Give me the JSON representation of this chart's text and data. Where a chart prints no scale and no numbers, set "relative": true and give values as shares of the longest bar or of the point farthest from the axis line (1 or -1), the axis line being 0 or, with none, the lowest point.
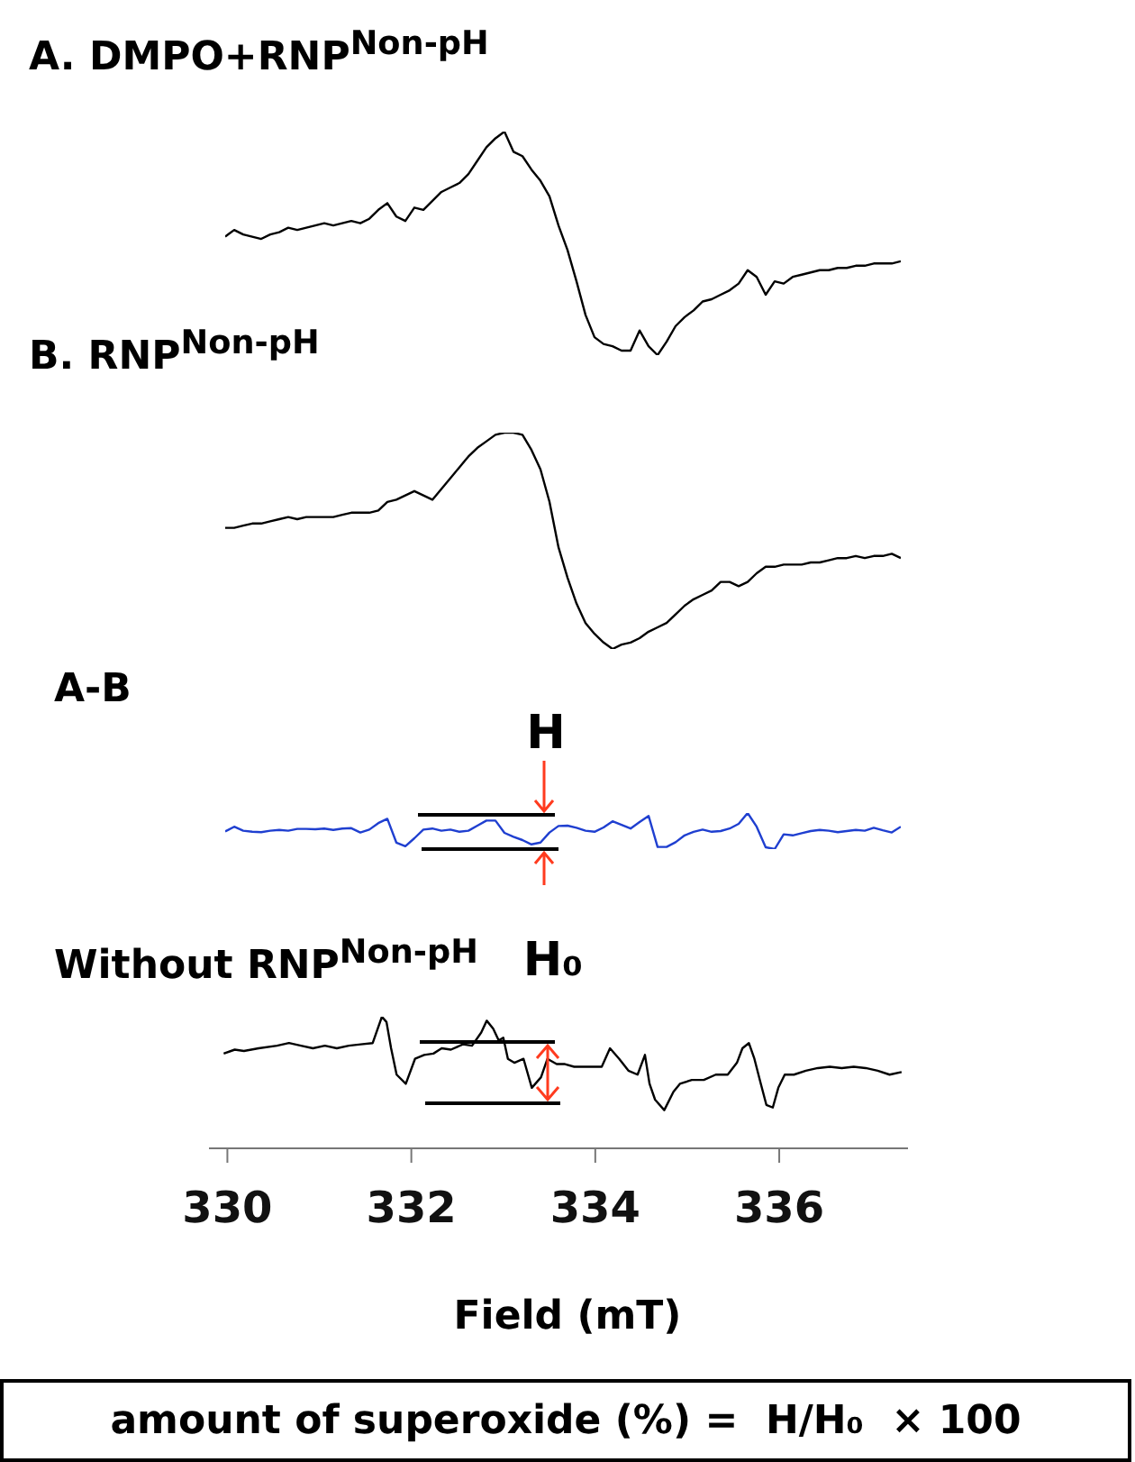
{
  "chart_data": [
    {
      "type": "line",
      "title": "A. DMPO+RNP$^{Non-pH}$",
      "relative": true,
      "marker": "none",
      "line_style": "solid",
      "tick_labels": false,
      "categories": [
        null,
        null,
        null,
        null,
        null,
        null,
        null,
        null,
        null,
        null,
        null,
        null,
        null,
        null,
        null,
        null,
        null,
        null,
        null,
        null,
        null,
        null,
        null,
        null,
        null,
        null,
        null,
        null,
        null,
        null,
        null,
        null,
        null,
        null,
        null,
        null,
        null,
        null,
        null,
        null,
        null,
        null,
        null,
        null,
        null,
        null,
        null,
        null,
        null,
        null,
        null,
        null,
        null,
        null,
        null,
        null,
        null,
        null,
        null,
        null,
        null,
        null,
        null,
        null,
        null,
        null,
        null,
        null,
        null,
        null,
        null,
        null,
        null,
        null,
        null,
        null
      ],
      "series": [
        {
          "color": "#000000",
          "values": [
            0.53,
            0.56,
            0.54,
            0.53,
            0.52,
            0.54,
            0.55,
            0.57,
            0.56,
            0.57,
            0.58,
            0.59,
            0.58,
            0.59,
            0.6,
            0.59,
            0.61,
            0.65,
            0.68,
            0.62,
            0.6,
            0.66,
            0.65,
            0.69,
            0.73,
            0.75,
            0.77,
            0.81,
            0.87,
            0.93,
            0.97,
            1,
            0.91,
            0.89,
            0.83,
            0.78,
            0.71,
            0.58,
            0.47,
            0.33,
            0.18,
            0.08,
            0.05,
            0.04,
            0.02,
            0.02,
            0.11,
            0.04,
            0,
            0.06,
            0.13,
            0.17,
            0.2,
            0.24,
            0.25,
            0.27,
            0.29,
            0.32,
            0.38,
            0.35,
            0.27,
            0.33,
            0.32,
            0.35,
            0.36,
            0.37,
            0.38,
            0.38,
            0.39,
            0.39,
            0.4,
            0.4,
            0.41,
            0.41,
            0.41,
            0.42
          ]
        }
      ]
    },
    {
      "type": "line",
      "title": "B. RNP$^{Non-pH}$",
      "relative": true,
      "marker": "none",
      "line_style": "solid",
      "tick_labels": false,
      "categories": [
        null,
        null,
        null,
        null,
        null,
        null,
        null,
        null,
        null,
        null,
        null,
        null,
        null,
        null,
        null,
        null,
        null,
        null,
        null,
        null,
        null,
        null,
        null,
        null,
        null,
        null,
        null,
        null,
        null,
        null,
        null,
        null,
        null,
        null,
        null,
        null,
        null,
        null,
        null,
        null,
        null,
        null,
        null,
        null,
        null,
        null,
        null,
        null,
        null,
        null,
        null,
        null,
        null,
        null,
        null,
        null,
        null,
        null,
        null,
        null,
        null,
        null,
        null,
        null,
        null,
        null,
        null,
        null,
        null,
        null,
        null,
        null,
        null,
        null,
        null,
        null
      ],
      "series": [
        {
          "color": "#000000",
          "values": [
            0.56,
            0.56,
            0.57,
            0.58,
            0.58,
            0.59,
            0.6,
            0.61,
            0.6,
            0.61,
            0.61,
            0.61,
            0.61,
            0.62,
            0.63,
            0.63,
            0.63,
            0.64,
            0.68,
            0.69,
            0.71,
            0.73,
            0.71,
            0.69,
            0.74,
            0.79,
            0.84,
            0.89,
            0.93,
            0.96,
            0.99,
            1,
            1,
            0.99,
            0.92,
            0.83,
            0.68,
            0.47,
            0.33,
            0.21,
            0.12,
            0.07,
            0.03,
            0,
            0.02,
            0.03,
            0.05,
            0.08,
            0.1,
            0.12,
            0.16,
            0.2,
            0.23,
            0.25,
            0.27,
            0.31,
            0.31,
            0.29,
            0.31,
            0.35,
            0.38,
            0.38,
            0.39,
            0.39,
            0.39,
            0.4,
            0.4,
            0.41,
            0.42,
            0.42,
            0.43,
            0.42,
            0.43,
            0.43,
            0.44,
            0.42
          ]
        }
      ]
    },
    {
      "type": "line",
      "title": "A-B",
      "relative": true,
      "marker": "none",
      "line_style": "solid",
      "tick_labels": false,
      "annotations": [
        "H"
      ],
      "categories": [
        null,
        null,
        null,
        null,
        null,
        null,
        null,
        null,
        null,
        null,
        null,
        null,
        null,
        null,
        null,
        null,
        null,
        null,
        null,
        null,
        null,
        null,
        null,
        null,
        null,
        null,
        null,
        null,
        null,
        null,
        null,
        null,
        null,
        null,
        null,
        null,
        null,
        null,
        null,
        null,
        null,
        null,
        null,
        null,
        null,
        null,
        null,
        null,
        null,
        null,
        null,
        null,
        null,
        null,
        null,
        null,
        null,
        null,
        null,
        null,
        null,
        null,
        null,
        null,
        null,
        null,
        null,
        null,
        null,
        null,
        null,
        null,
        null,
        null,
        null,
        null
      ],
      "series": [
        {
          "color": "#1f3fd0",
          "values": [
            0.49,
            0.62,
            0.51,
            0.48,
            0.47,
            0.51,
            0.53,
            0.51,
            0.56,
            0.56,
            0.55,
            0.57,
            0.53,
            0.57,
            0.58,
            0.46,
            0.54,
            0.72,
            0.84,
            0.18,
            0.08,
            0.3,
            0.54,
            0.57,
            0.51,
            0.54,
            0.48,
            0.51,
            0.65,
            0.79,
            0.79,
            0.45,
            0.34,
            0.25,
            0.13,
            0.18,
            0.46,
            0.64,
            0.65,
            0.59,
            0.51,
            0.48,
            0.6,
            0.77,
            0.67,
            0.57,
            0.75,
            0.92,
            0.06,
            0.06,
            0.19,
            0.38,
            0.48,
            0.54,
            0.48,
            0.5,
            0.57,
            0.7,
            1,
            0.62,
            0.05,
            0,
            0.41,
            0.38,
            0.44,
            0.5,
            0.53,
            0.51,
            0.47,
            0.5,
            0.53,
            0.51,
            0.59,
            0.52,
            0.46,
            0.62
          ]
        }
      ]
    },
    {
      "type": "line",
      "title": "Without RNP$^{Non-pH}$",
      "relative": true,
      "marker": "none",
      "line_style": "solid",
      "tick_labels": "x",
      "xlim": [
        329.8,
        337.4
      ],
      "xticks": [
        330,
        332,
        334,
        336
      ],
      "xlabel": "Field (mT)",
      "annotations": [
        "H₀",
        "amount of superoxide (%) =  H/H₀  × 100"
      ],
      "x": [
        329.96,
        330.08,
        330.18,
        330.34,
        330.54,
        330.67,
        330.8,
        330.93,
        331.06,
        331.19,
        331.32,
        331.45,
        331.58,
        331.68,
        331.73,
        331.78,
        331.84,
        331.94,
        332.04,
        332.14,
        332.24,
        332.33,
        332.43,
        332.56,
        332.66,
        332.76,
        332.82,
        332.89,
        332.95,
        333.0,
        333.05,
        333.12,
        333.22,
        333.31,
        333.41,
        333.48,
        333.58,
        333.67,
        333.77,
        333.87,
        333.97,
        334.07,
        334.16,
        334.26,
        334.36,
        334.46,
        334.54,
        334.59,
        334.65,
        334.75,
        334.85,
        334.92,
        335.05,
        335.18,
        335.31,
        335.44,
        335.54,
        335.6,
        335.67,
        335.73,
        335.8,
        335.86,
        335.93,
        335.99,
        336.06,
        336.16,
        336.29,
        336.42,
        336.55,
        336.68,
        336.81,
        336.94,
        337.07,
        337.2,
        337.33
      ],
      "series": [
        {
          "color": "#000000",
          "values": [
            0.72,
            0.75,
            0.74,
            0.76,
            0.78,
            0.8,
            0.78,
            0.76,
            0.78,
            0.76,
            0.78,
            0.79,
            0.8,
            1,
            0.96,
            0.76,
            0.56,
            0.49,
            0.68,
            0.71,
            0.72,
            0.76,
            0.75,
            0.79,
            0.78,
            0.88,
            0.97,
            0.91,
            0.82,
            0.84,
            0.68,
            0.65,
            0.68,
            0.46,
            0.54,
            0.68,
            0.64,
            0.64,
            0.62,
            0.62,
            0.62,
            0.62,
            0.76,
            0.68,
            0.59,
            0.56,
            0.71,
            0.49,
            0.37,
            0.29,
            0.43,
            0.49,
            0.52,
            0.52,
            0.56,
            0.56,
            0.65,
            0.76,
            0.8,
            0.68,
            0.49,
            0.33,
            0.31,
            0.46,
            0.56,
            0.56,
            0.59,
            0.61,
            0.62,
            0.61,
            0.62,
            0.61,
            0.59,
            0.56,
            0.58
          ]
        }
      ]
    }
  ]
}
